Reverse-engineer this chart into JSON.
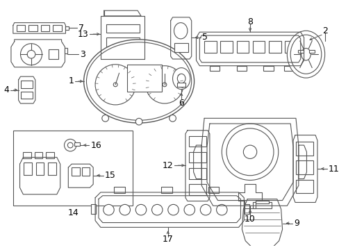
{
  "bg_color": "#ffffff",
  "line_color": "#555555",
  "label_color": "#000000",
  "figw": 4.89,
  "figh": 3.6,
  "dpi": 100
}
